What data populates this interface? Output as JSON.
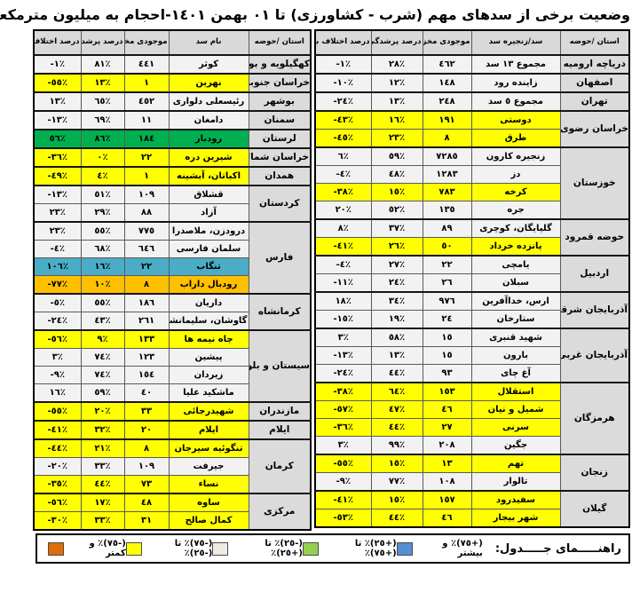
{
  "title": "وضعیت برخی از سدهای مهم (شرب - کشاورزی) تا ٠١ بهمن ١٤٠١-احجام به میلیون مترمکعب",
  "colors": {
    "row_white": "#F2F2F2",
    "row_yellow": "#FFFF00",
    "row_green": "#00B050",
    "row_blue": "#4BACC6",
    "row_orange": "#FFC000",
    "header_bg": "#D9D9D9",
    "province_bg": "#DBDBDB",
    "legend_blue": "#558ED5",
    "legend_green": "#92D050",
    "legend_white": "#EEECE1",
    "legend_yellow": "#FFFF00",
    "legend_orange": "#E36C0A"
  },
  "tables": {
    "right": {
      "headers": [
        "استان /حوضه",
        "سد/زنجیره سد",
        "موجودی مخزن",
        "درصد پرشدگی",
        "درصد اختلاف با سال قبل"
      ],
      "groups": [
        {
          "province": "دریاچه ارومیه",
          "rows": [
            {
              "name": "مجموع ١٣ سد",
              "stock": "٤٦٢",
              "fill": "٢٨٪",
              "diff": "-١٪",
              "color": "white"
            }
          ]
        },
        {
          "province": "اصفهان",
          "rows": [
            {
              "name": "زاینده رود",
              "stock": "١٤٨",
              "fill": "١٢٪",
              "diff": "-١٠٪",
              "color": "white"
            }
          ]
        },
        {
          "province": "تهران",
          "rows": [
            {
              "name": "مجموع ٥ سد",
              "stock": "٢٤٨",
              "fill": "١٣٪",
              "diff": "-٢٤٪",
              "color": "white"
            }
          ]
        },
        {
          "province": "خراسان رضوی",
          "rows": [
            {
              "name": "دوستی",
              "stock": "١٩١",
              "fill": "١٦٪",
              "diff": "-٤٣٪",
              "color": "yellow"
            },
            {
              "name": "طرق",
              "stock": "٨",
              "fill": "٢٣٪",
              "diff": "-٤٥٪",
              "color": "yellow"
            }
          ]
        },
        {
          "province": "خوزستان",
          "rows": [
            {
              "name": "زنجیره کارون",
              "stock": "٧٢٨٥",
              "fill": "٥٩٪",
              "diff": "٦٪",
              "color": "white"
            },
            {
              "name": "دز",
              "stock": "١٢٨٣",
              "fill": "٤٨٪",
              "diff": "-٤٪",
              "color": "white"
            },
            {
              "name": "کرخه",
              "stock": "٧٨٣",
              "fill": "١٥٪",
              "diff": "-٣٨٪",
              "color": "yellow"
            },
            {
              "name": "جره",
              "stock": "١٣٥",
              "fill": "٥٢٪",
              "diff": "٢٠٪",
              "color": "white"
            }
          ]
        },
        {
          "province": "حوضه قمرود",
          "rows": [
            {
              "name": "گلپایگان، کوچری",
              "stock": "٨٩",
              "fill": "٣٧٪",
              "diff": "٨٪",
              "color": "white"
            },
            {
              "name": "پانزده خرداد",
              "stock": "٥٠",
              "fill": "٢٦٪",
              "diff": "-٤١٪",
              "color": "yellow"
            }
          ]
        },
        {
          "province": "اردبیل",
          "rows": [
            {
              "name": "یامچی",
              "stock": "٢٢",
              "fill": "٢٧٪",
              "diff": "-٤٪",
              "color": "white"
            },
            {
              "name": "سبلان",
              "stock": "٢٦",
              "fill": "٢٤٪",
              "diff": "-١١٪",
              "color": "white"
            }
          ]
        },
        {
          "province": "آذربایجان شرقی",
          "rows": [
            {
              "name": "ارس، خداآفرین",
              "stock": "٩٧٦",
              "fill": "٣٤٪",
              "diff": "١٨٪",
              "color": "white"
            },
            {
              "name": "ستارخان",
              "stock": "٢٤",
              "fill": "١٩٪",
              "diff": "-١٥٪",
              "color": "white"
            }
          ]
        },
        {
          "province": "آذربایجان غربی",
          "rows": [
            {
              "name": "شهید قنبری",
              "stock": "١٥",
              "fill": "٥٨٪",
              "diff": "٣٪",
              "color": "white"
            },
            {
              "name": "بارون",
              "stock": "١٥",
              "fill": "١٣٪",
              "diff": "-١٣٪",
              "color": "white"
            },
            {
              "name": "آغ چای",
              "stock": "٩٣",
              "fill": "٤٤٪",
              "diff": "-٢٤٪",
              "color": "white"
            }
          ]
        },
        {
          "province": "هرمزگان",
          "rows": [
            {
              "name": "استقلال",
              "stock": "١٥٣",
              "fill": "٦٤٪",
              "diff": "-٣٨٪",
              "color": "yellow"
            },
            {
              "name": "شمیل و نیان",
              "stock": "٤٦",
              "fill": "٤٧٪",
              "diff": "-٥٧٪",
              "color": "yellow"
            },
            {
              "name": "سرنی",
              "stock": "٢٧",
              "fill": "٤٤٪",
              "diff": "-٣٦٪",
              "color": "yellow"
            },
            {
              "name": "جگین",
              "stock": "٢٠٨",
              "fill": "٩٩٪",
              "diff": "٣٪",
              "color": "white"
            }
          ]
        },
        {
          "province": "زنجان",
          "rows": [
            {
              "name": "تهم",
              "stock": "١٣",
              "fill": "١٥٪",
              "diff": "-٥٥٪",
              "color": "yellow"
            },
            {
              "name": "تالوار",
              "stock": "١٠٨",
              "fill": "٧٧٪",
              "diff": "-٩٪",
              "color": "white"
            }
          ]
        },
        {
          "province": "گیلان",
          "rows": [
            {
              "name": "سفیدرود",
              "stock": "١٥٧",
              "fill": "١٥٪",
              "diff": "-٤١٪",
              "color": "yellow"
            },
            {
              "name": "شهر بیجار",
              "stock": "٤٦",
              "fill": "٤٤٪",
              "diff": "-٥٣٪",
              "color": "yellow"
            }
          ]
        }
      ]
    },
    "left": {
      "headers": [
        "استان /حوضه",
        "نام سد",
        "موجودی مخزن",
        "درصد پرشدگی",
        "درصد اختلاف با سال قبل"
      ],
      "groups": [
        {
          "province": "کهگیلویه و بویراحمد",
          "rows": [
            {
              "name": "کوثر",
              "stock": "٤٤١",
              "fill": "٨١٪",
              "diff": "-١٪",
              "color": "white"
            }
          ]
        },
        {
          "province": "خراسان جنوبی",
          "rows": [
            {
              "name": "نهرین",
              "stock": "١",
              "fill": "١٣٪",
              "diff": "-٥٥٪",
              "color": "yellow"
            }
          ]
        },
        {
          "province": "بوشهر",
          "rows": [
            {
              "name": "رئیسعلی دلواری",
              "stock": "٤٥٢",
              "fill": "٦٥٪",
              "diff": "١٣٪",
              "color": "white"
            }
          ]
        },
        {
          "province": "سمنان",
          "rows": [
            {
              "name": "دامغان",
              "stock": "١١",
              "fill": "٦٩٪",
              "diff": "-١٣٪",
              "color": "white"
            }
          ]
        },
        {
          "province": "لرستان",
          "rows": [
            {
              "name": "رودبار",
              "stock": "١٨٤",
              "fill": "٨٦٪",
              "diff": "٥٦٪",
              "color": "green"
            }
          ]
        },
        {
          "province": "خراسان شمالی",
          "rows": [
            {
              "name": "شیرین دره",
              "stock": "٢٢",
              "fill": "٠٪",
              "diff": "-٣٦٪",
              "color": "yellow"
            }
          ]
        },
        {
          "province": "همدان",
          "rows": [
            {
              "name": "اکباتان، آبشینه",
              "stock": "١",
              "fill": "٤٪",
              "diff": "-٤٩٪",
              "color": "yellow"
            }
          ]
        },
        {
          "province": "کردستان",
          "rows": [
            {
              "name": "قشلاق",
              "stock": "١٠٩",
              "fill": "٥١٪",
              "diff": "-١٣٪",
              "color": "white"
            },
            {
              "name": "آزاد",
              "stock": "٨٨",
              "fill": "٢٩٪",
              "diff": "٢٣٪",
              "color": "white"
            }
          ]
        },
        {
          "province": "فارس",
          "rows": [
            {
              "name": "درودزن، ملاصدرا",
              "stock": "٧٧٥",
              "fill": "٥٥٪",
              "diff": "٢٣٪",
              "color": "white"
            },
            {
              "name": "سلمان فارسی",
              "stock": "٦٤٦",
              "fill": "٦٨٪",
              "diff": "-٤٪",
              "color": "white"
            },
            {
              "name": "تنگاب",
              "stock": "٢٢",
              "fill": "١٦٪",
              "diff": "١٠٦٪",
              "color": "blue"
            },
            {
              "name": "رودبال داراب",
              "stock": "٨",
              "fill": "١٠٪",
              "diff": "-٧٧٪",
              "color": "orange"
            }
          ]
        },
        {
          "province": "کرمانشاه",
          "rows": [
            {
              "name": "داریان",
              "stock": "١٨٦",
              "fill": "٥٥٪",
              "diff": "-٥٪",
              "color": "white"
            },
            {
              "name": "گاوشان، سلیمانشاه",
              "stock": "٢٦١",
              "fill": "٤٣٪",
              "diff": "-٢٤٪",
              "color": "white"
            }
          ]
        },
        {
          "province": "سیستان و بلوچستان",
          "rows": [
            {
              "name": "چاه نیمه ها",
              "stock": "١٣٣",
              "fill": "٩٪",
              "diff": "-٥٦٪",
              "color": "yellow"
            },
            {
              "name": "پیشین",
              "stock": "١٢٣",
              "fill": "٧٤٪",
              "diff": "٣٪",
              "color": "white"
            },
            {
              "name": "زیردان",
              "stock": "١٥٤",
              "fill": "٧٤٪",
              "diff": "-٩٪",
              "color": "white"
            },
            {
              "name": "ماشکید علیا",
              "stock": "٤٠",
              "fill": "٥٩٪",
              "diff": "١٦٪",
              "color": "white"
            }
          ]
        },
        {
          "province": "مازندران",
          "rows": [
            {
              "name": "شهیدرجائی",
              "stock": "٣٣",
              "fill": "٢٠٪",
              "diff": "-٥٥٪",
              "color": "yellow"
            }
          ]
        },
        {
          "province": "ایلام",
          "rows": [
            {
              "name": "ایلام",
              "stock": "٢٠",
              "fill": "٣٢٪",
              "diff": "-٤١٪",
              "color": "yellow"
            }
          ]
        },
        {
          "province": "کرمان",
          "rows": [
            {
              "name": "تنگوئیه سیرجان",
              "stock": "٨",
              "fill": "٢١٪",
              "diff": "-٤٤٪",
              "color": "yellow"
            },
            {
              "name": "جیرفت",
              "stock": "١٠٩",
              "fill": "٣٣٪",
              "diff": "-٢٠٪",
              "color": "white"
            },
            {
              "name": "نساء",
              "stock": "٧٣",
              "fill": "٤٤٪",
              "diff": "-٣٥٪",
              "color": "yellow"
            }
          ]
        },
        {
          "province": "مرکزی",
          "rows": [
            {
              "name": "ساوه",
              "stock": "٤٨",
              "fill": "١٧٪",
              "diff": "-٥٦٪",
              "color": "yellow"
            },
            {
              "name": "کمال صالح",
              "stock": "٣١",
              "fill": "٣٣٪",
              "diff": "-٣٠٪",
              "color": "yellow"
            }
          ]
        }
      ]
    }
  },
  "legend": {
    "label": "راهنـــــمای جـــــدول:",
    "items": [
      {
        "key": "blue",
        "swatch": "#558ED5",
        "label": "(+٧٥)٪ و بیشتر"
      },
      {
        "key": "green",
        "swatch": "#92D050",
        "label": "(+٢٥)٪ تا (+٧٥)٪"
      },
      {
        "key": "white",
        "swatch": "#EEECE1",
        "label": "(-٢٥)٪ تا (+٢٥)٪"
      },
      {
        "key": "yellow",
        "swatch": "#FFFF00",
        "label": "(-٧٥)٪ تا (-٢٥)٪"
      },
      {
        "key": "orange",
        "swatch": "#E36C0A",
        "label": "(-٧٥)٪ و کمتر"
      }
    ]
  }
}
